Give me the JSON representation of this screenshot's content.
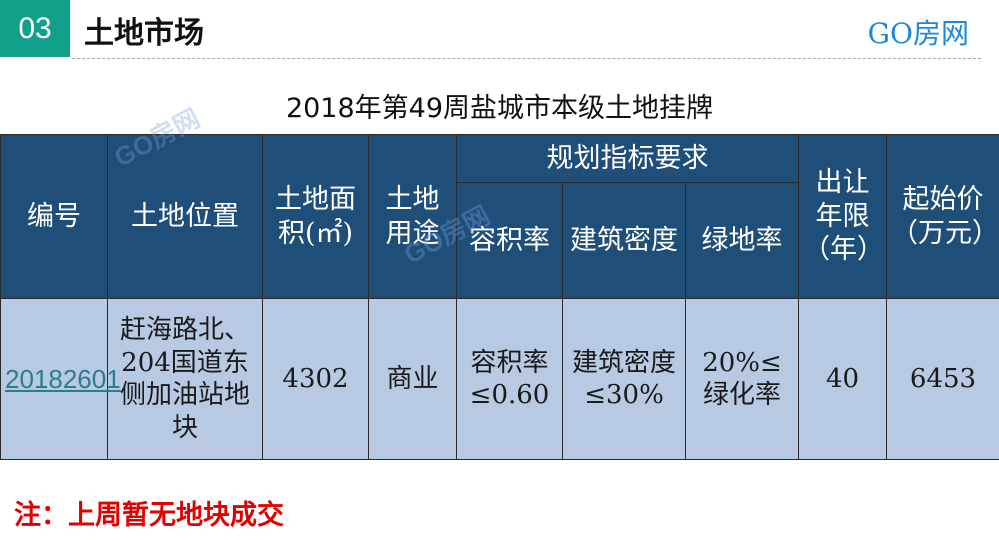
{
  "header": {
    "section_number": "03",
    "section_title": "土地市场",
    "brand": "GO房网"
  },
  "table_title": "2018年第49周盐城市本级土地挂牌",
  "watermark": "GO房网",
  "table": {
    "headers": {
      "id": "编号",
      "location": "土地位置",
      "area": "土地面积(㎡)",
      "use": "土地用途",
      "planning_group": "规划指标要求",
      "plot_ratio": "容积率",
      "building_density": "建筑密度",
      "green_ratio": "绿地率",
      "term": "出让年限（年）",
      "start_price": "起始价（万元）"
    },
    "rows": [
      {
        "id": "20182601",
        "location": "赶海路北、204国道东侧加油站地块",
        "area": "4302",
        "use": "商业",
        "plot_ratio": "容积率≤0.60",
        "building_density": "建筑密度≤30%",
        "green_ratio": "20%≤绿化率",
        "term": "40",
        "start_price": "6453"
      }
    ]
  },
  "note": "注：上周暂无地块成交",
  "colors": {
    "badge": "#13a08a",
    "brand": "#1a8ad8",
    "header_bg": "#1f4e79",
    "row_bg": "#b8c9e3",
    "note": "#e00000"
  }
}
